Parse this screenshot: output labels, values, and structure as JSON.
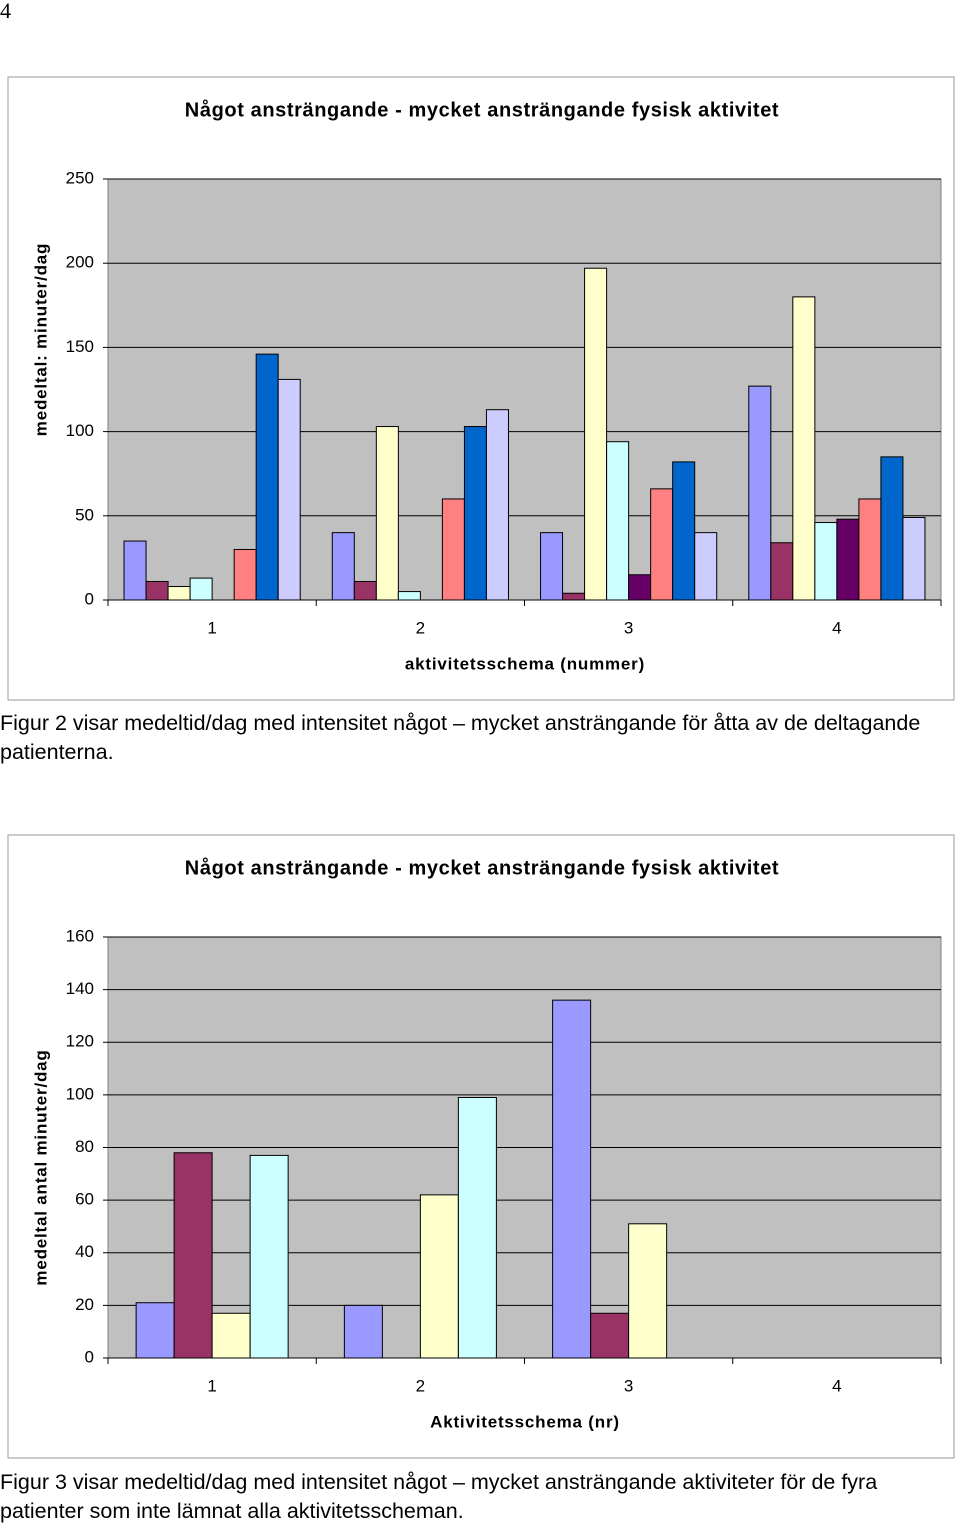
{
  "page_number": "4",
  "chart_data": [
    {
      "type": "bar",
      "title": "Något ansträngande - mycket ansträngande fysisk aktivitet",
      "y_label": "medeltal: minuter/dag",
      "x_label": "aktivitetsschema (nummer)",
      "categories": [
        "1",
        "2",
        "3",
        "4"
      ],
      "series": [
        {
          "color": "#9999ff",
          "values": [
            35,
            40,
            40,
            127
          ]
        },
        {
          "color": "#993366",
          "values": [
            11,
            11,
            4,
            34
          ]
        },
        {
          "color": "#ffffcc",
          "values": [
            8,
            103,
            197,
            180
          ]
        },
        {
          "color": "#ccffff",
          "values": [
            13,
            5,
            94,
            46
          ]
        },
        {
          "color": "#660066",
          "values": [
            null,
            null,
            15,
            48
          ]
        },
        {
          "color": "#ff8080",
          "values": [
            30,
            60,
            66,
            60
          ]
        },
        {
          "color": "#0066cc",
          "values": [
            146,
            103,
            82,
            85
          ]
        },
        {
          "color": "#ccccff",
          "values": [
            131,
            113,
            40,
            49
          ]
        }
      ],
      "ylim": [
        0,
        250
      ],
      "yticks": [
        0,
        50,
        100,
        150,
        200,
        250
      ],
      "grid": true
    },
    {
      "type": "bar",
      "title": "Något ansträngande - mycket ansträngande fysisk aktivitet",
      "y_label": "medeltal antal minuter/dag",
      "x_label": "Aktivitetsschema (nr)",
      "categories": [
        "1",
        "2",
        "3",
        "4"
      ],
      "series": [
        {
          "color": "#9999ff",
          "values": [
            21,
            20,
            136,
            null
          ]
        },
        {
          "color": "#993366",
          "values": [
            78,
            null,
            17,
            null
          ]
        },
        {
          "color": "#ffffcc",
          "values": [
            17,
            62,
            51,
            null
          ]
        },
        {
          "color": "#ccffff",
          "values": [
            77,
            99,
            null,
            null
          ]
        }
      ],
      "ylim": [
        0,
        160
      ],
      "yticks": [
        0,
        20,
        40,
        60,
        80,
        100,
        120,
        140,
        160
      ],
      "grid": true
    }
  ],
  "captions": [
    "Figur 2 visar medeltid/dag med intensitet något – mycket ansträngande för åtta av de deltagande patienterna.",
    "Figur 3 visar medeltid/dag med intensitet något – mycket ansträngande aktiviteter för de fyra patienter som inte lämnat alla aktivitetsscheman."
  ]
}
